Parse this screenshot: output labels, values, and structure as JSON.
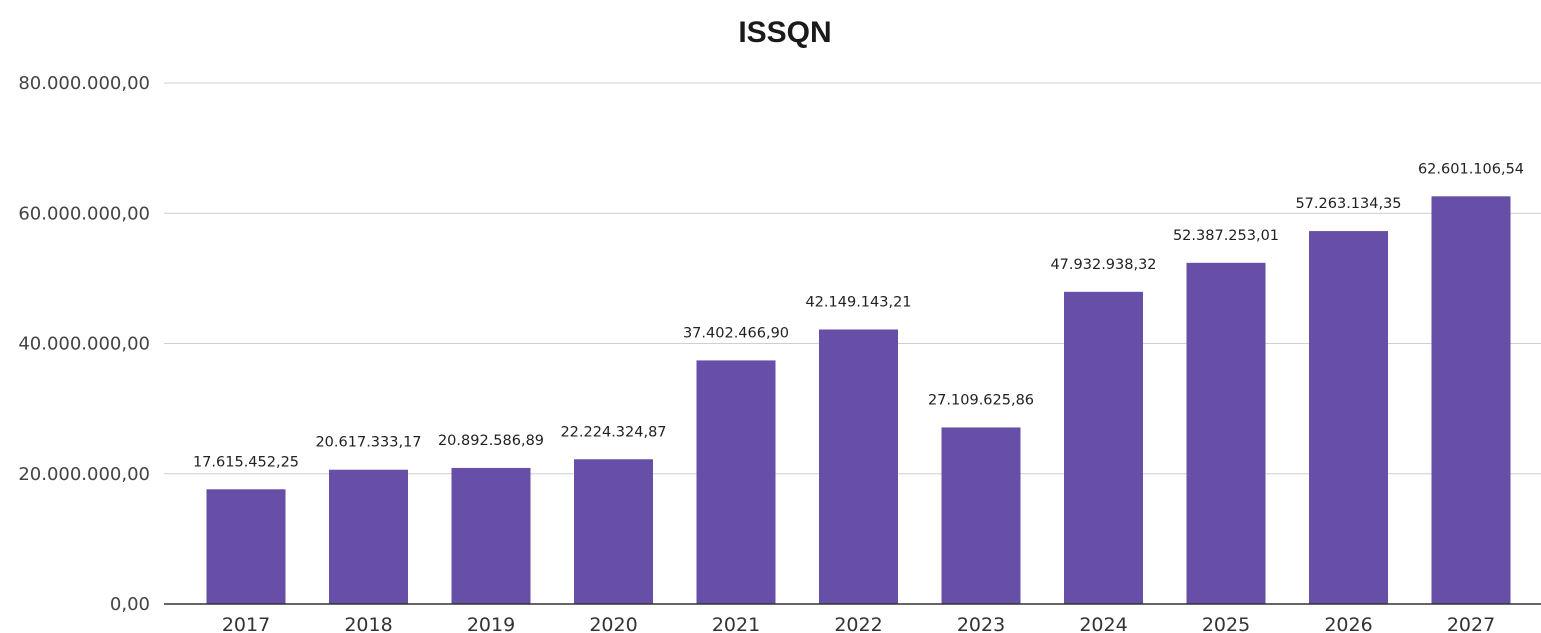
{
  "chart_data": {
    "type": "bar",
    "title": "ISSQN",
    "xlabel": "",
    "ylabel": "",
    "ylim": [
      0,
      80000000
    ],
    "grid": true,
    "legend": "none",
    "bar_color": "#674ea7",
    "yticks": [
      {
        "value": 0,
        "label": "0,00"
      },
      {
        "value": 20000000,
        "label": "20.000.000,00"
      },
      {
        "value": 40000000,
        "label": "40.000.000,00"
      },
      {
        "value": 60000000,
        "label": "60.000.000,00"
      },
      {
        "value": 80000000,
        "label": "80.000.000,00"
      }
    ],
    "categories": [
      "2017",
      "2018",
      "2019",
      "2020",
      "2021",
      "2022",
      "2023",
      "2024",
      "2025",
      "2026",
      "2027"
    ],
    "values": [
      17615452.25,
      20617333.17,
      20892586.89,
      22224324.87,
      37402466.9,
      42149143.21,
      27109625.86,
      47932938.32,
      52387253.01,
      57263134.35,
      62601106.54
    ],
    "data_labels": [
      "17.615.452,25",
      "20.617.333,17",
      "20.892.586,89",
      "22.224.324,87",
      "37.402.466,90",
      "42.149.143,21",
      "27.109.625,86",
      "47.932.938,32",
      "52.387.253,01",
      "57.263.134,35",
      "62.601.106,54"
    ]
  }
}
